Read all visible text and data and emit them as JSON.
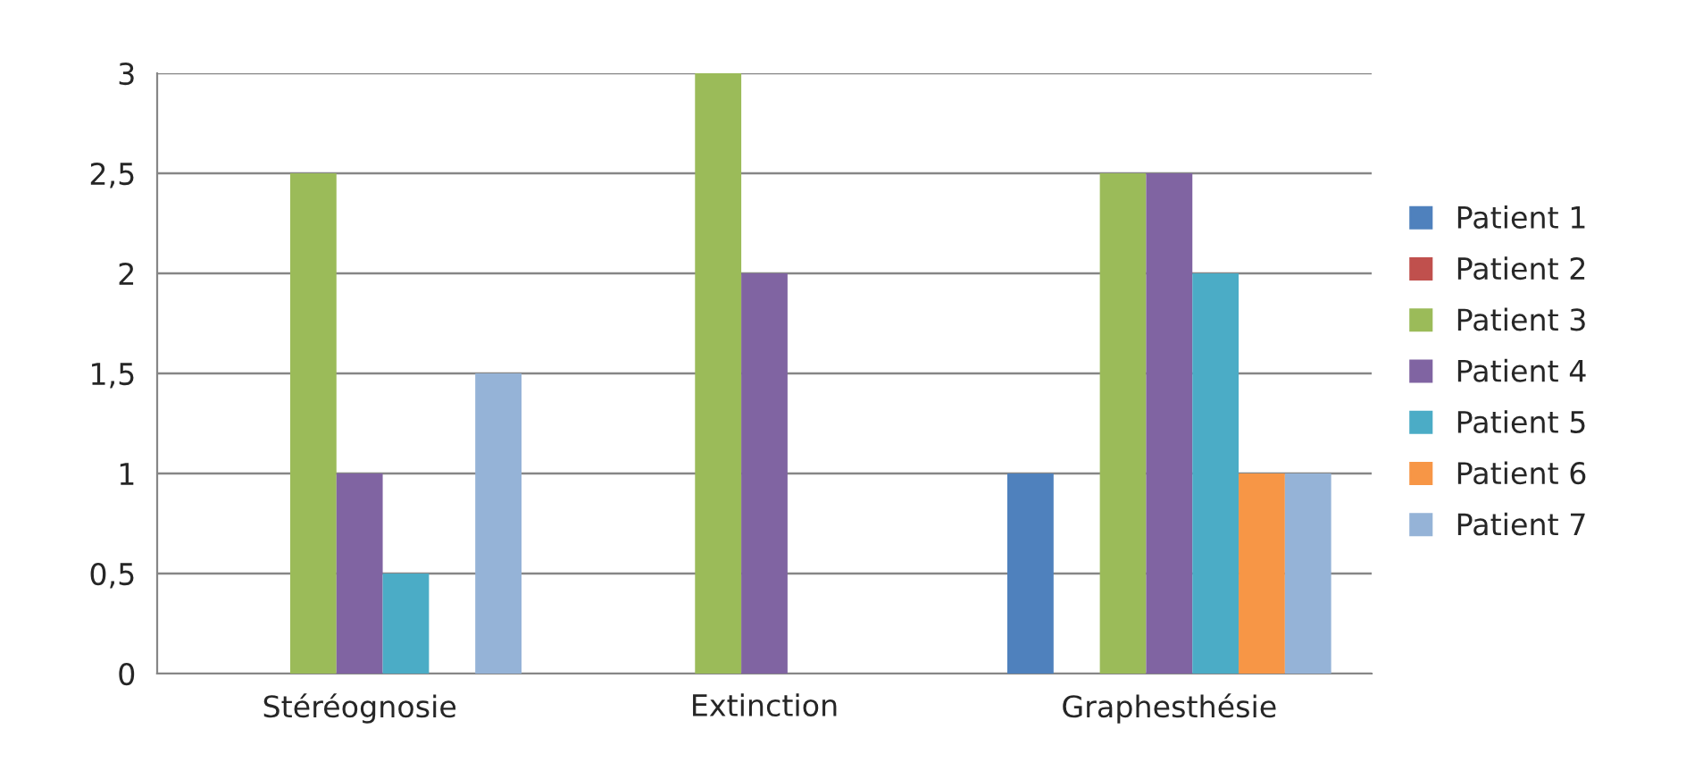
{
  "chart_data": {
    "type": "bar",
    "categories": [
      "Stéréognosie",
      "Extinction",
      "Graphesthésie"
    ],
    "series": [
      {
        "name": "Patient 1",
        "color": "#4f81bd",
        "values": [
          0,
          0,
          1
        ]
      },
      {
        "name": "Patient 2",
        "color": "#c0504d",
        "values": [
          0,
          0,
          0
        ]
      },
      {
        "name": "Patient 3",
        "color": "#9bbb59",
        "values": [
          2.5,
          3,
          2.5
        ]
      },
      {
        "name": "Patient 4",
        "color": "#8064a2",
        "values": [
          1,
          2,
          2.5
        ]
      },
      {
        "name": "Patient 5",
        "color": "#4bacc6",
        "values": [
          0.5,
          0,
          2
        ]
      },
      {
        "name": "Patient 6",
        "color": "#f79646",
        "values": [
          0,
          0,
          1
        ]
      },
      {
        "name": "Patient 7",
        "color": "#95b3d7",
        "values": [
          1.5,
          0,
          1
        ]
      }
    ],
    "ylim": [
      0,
      3
    ],
    "yticks": [
      0,
      {
        "value": 0.5,
        "label": "0,5"
      },
      1,
      {
        "value": 1.5,
        "label": "1,5"
      },
      2,
      {
        "value": 2.5,
        "label": "2,5"
      },
      3
    ],
    "grid": "y",
    "legend": "right"
  }
}
